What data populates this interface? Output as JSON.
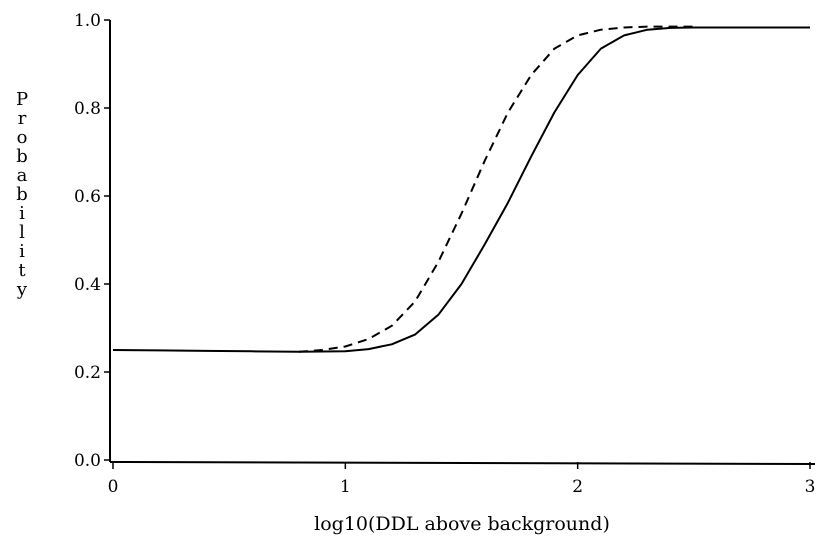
{
  "chart_data": {
    "type": "line",
    "title": "",
    "xlabel": "log10(DDL above background)",
    "ylabel": "Probability",
    "xlim": [
      0,
      3
    ],
    "ylim": [
      0,
      1
    ],
    "x_ticks": [
      "0",
      "1",
      "2",
      "3"
    ],
    "y_ticks": [
      "0.0",
      "0.2",
      "0.4",
      "0.6",
      "0.8",
      "1.0"
    ],
    "grid": false,
    "legend": "none",
    "series": [
      {
        "style": "solid",
        "color": "#000000",
        "x": [
          0,
          0.2,
          0.4,
          0.6,
          0.8,
          1.0,
          1.1,
          1.2,
          1.3,
          1.4,
          1.5,
          1.6,
          1.7,
          1.8,
          1.9,
          2.0,
          2.1,
          2.2,
          2.3,
          2.4,
          2.5,
          2.7,
          3.0
        ],
        "y": [
          0.25,
          0.249,
          0.248,
          0.247,
          0.246,
          0.247,
          0.252,
          0.263,
          0.285,
          0.33,
          0.4,
          0.49,
          0.585,
          0.69,
          0.79,
          0.875,
          0.935,
          0.965,
          0.978,
          0.982,
          0.983,
          0.983,
          0.983
        ]
      },
      {
        "style": "dashed",
        "color": "#000000",
        "x": [
          0.8,
          0.9,
          1.0,
          1.1,
          1.2,
          1.3,
          1.4,
          1.5,
          1.6,
          1.7,
          1.8,
          1.9,
          2.0,
          2.1,
          2.2,
          2.3,
          2.4,
          2.5
        ],
        "y": [
          0.246,
          0.25,
          0.258,
          0.275,
          0.305,
          0.36,
          0.45,
          0.56,
          0.68,
          0.79,
          0.875,
          0.935,
          0.965,
          0.978,
          0.983,
          0.985,
          0.985,
          0.985
        ]
      }
    ]
  }
}
